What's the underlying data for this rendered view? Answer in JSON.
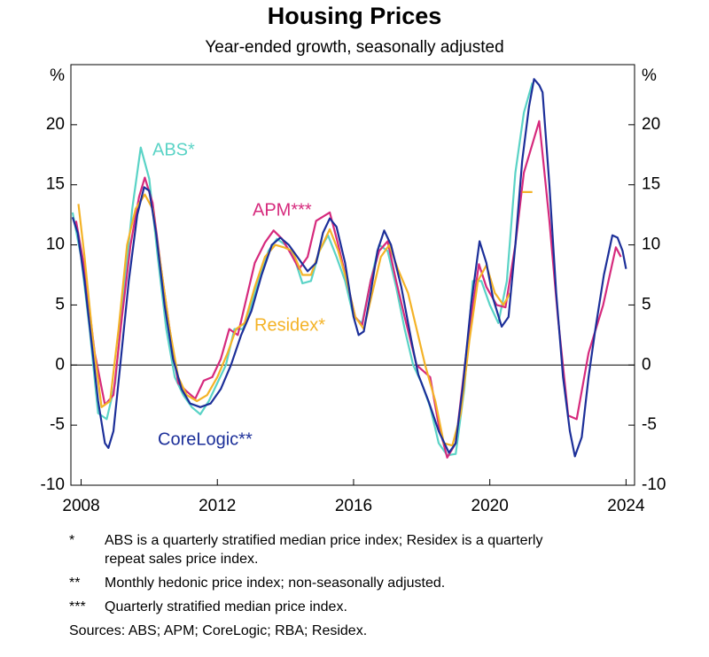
{
  "chart_data": {
    "type": "line",
    "title": "Housing Prices",
    "subtitle": "Year-ended growth, seasonally adjusted",
    "y_unit": "%",
    "y2_unit": "%",
    "xlim": [
      2007.7,
      2024.25
    ],
    "xticks": [
      2008,
      2012,
      2016,
      2020,
      2024
    ],
    "ylim": [
      -10,
      25
    ],
    "yticks": [
      -10,
      -5,
      0,
      5,
      10,
      15,
      20
    ],
    "y2lim": [
      -10,
      25
    ],
    "y2ticks": [
      -10,
      -5,
      0,
      5,
      10,
      15,
      20
    ],
    "zero_line": true,
    "series": [
      {
        "name": "ABS*",
        "color": "#5ad3c6",
        "x": [
          2007.75,
          2008.0,
          2008.25,
          2008.5,
          2008.75,
          2009.0,
          2009.25,
          2009.5,
          2009.75,
          2010.0,
          2010.25,
          2010.5,
          2010.75,
          2011.0,
          2011.25,
          2011.5,
          2011.75,
          2012.0,
          2012.25,
          2012.5,
          2012.75,
          2013.0,
          2013.25,
          2013.5,
          2013.75,
          2014.0,
          2014.25,
          2014.5,
          2014.75,
          2015.0,
          2015.25,
          2015.5,
          2015.75,
          2016.0,
          2016.25,
          2016.5,
          2016.75,
          2017.0,
          2017.25,
          2017.5,
          2017.75,
          2018.0,
          2018.25,
          2018.5,
          2018.75,
          2019.0,
          2019.25,
          2019.5,
          2019.75,
          2020.0,
          2020.25,
          2020.5,
          2020.75,
          2021.0,
          2021.25
        ],
        "values": [
          12.7,
          9,
          3,
          -4,
          -4.5,
          -1.5,
          6,
          13,
          18.1,
          15.5,
          9,
          3,
          -1,
          -2.5,
          -3.5,
          -4.1,
          -3,
          -1.5,
          0,
          3,
          3,
          5,
          7.5,
          9.5,
          10.5,
          10,
          9,
          6.8,
          7,
          9.5,
          10.8,
          9,
          7,
          4,
          3.5,
          7,
          10,
          9.5,
          6.5,
          3,
          0,
          -1.5,
          -3.5,
          -6.5,
          -7.5,
          -7.4,
          -2,
          7,
          7,
          5,
          3.5,
          7,
          16,
          21,
          23.5
        ]
      },
      {
        "name": "APM***",
        "color": "#d62a7d",
        "x": [
          2007.85,
          2008.1,
          2008.4,
          2008.7,
          2008.95,
          2009.2,
          2009.45,
          2009.7,
          2009.87,
          2010.1,
          2010.35,
          2010.6,
          2010.85,
          2011.1,
          2011.35,
          2011.6,
          2011.85,
          2012.1,
          2012.35,
          2012.6,
          2012.85,
          2013.1,
          2013.4,
          2013.65,
          2013.9,
          2014.15,
          2014.4,
          2014.65,
          2014.9,
          2015.3,
          2015.55,
          2015.8,
          2016.05,
          2016.25,
          2016.5,
          2016.75,
          2017.0,
          2017.25,
          2017.5,
          2017.85,
          2018.25,
          2018.5,
          2018.75,
          2019.0,
          2019.35,
          2019.68,
          2019.9,
          2020.2,
          2020.46,
          2020.75,
          2021.0,
          2021.45,
          2021.75,
          2022.0,
          2022.3,
          2022.55,
          2022.9,
          2023.33,
          2023.7,
          2023.85
        ],
        "values": [
          12,
          8,
          1,
          -3.3,
          -2.5,
          4,
          10,
          14,
          15.6,
          13.5,
          8,
          3,
          -1.5,
          -2.2,
          -2.8,
          -1.3,
          -1,
          0.5,
          3,
          2.5,
          5.5,
          8.5,
          10.2,
          11.2,
          10.5,
          9.3,
          8,
          9,
          12,
          12.7,
          10,
          7,
          4,
          3.3,
          7,
          9.5,
          10.3,
          7,
          4,
          0,
          -1,
          -5,
          -7.7,
          -6.5,
          2,
          8.4,
          6.5,
          5,
          4.8,
          10,
          16,
          20.3,
          12,
          4,
          -4.2,
          -4.5,
          1,
          5,
          9.8,
          9
        ]
      },
      {
        "name": "Residex*",
        "color": "#f4b327",
        "x": [
          2007.92,
          2008.1,
          2008.35,
          2008.6,
          2008.85,
          2009.1,
          2009.35,
          2009.6,
          2009.87,
          2010.1,
          2010.35,
          2010.6,
          2010.85,
          2011.1,
          2011.4,
          2011.7,
          2012.0,
          2012.3,
          2012.55,
          2012.8,
          2013.1,
          2013.4,
          2013.7,
          2013.95,
          2014.2,
          2014.5,
          2014.75,
          2015.0,
          2015.3,
          2015.55,
          2015.8,
          2016.05,
          2016.3,
          2016.55,
          2016.8,
          2017.05,
          2017.3,
          2017.6,
          2017.85,
          2018.1,
          2018.4,
          2018.65,
          2018.9,
          2019.15,
          2019.4,
          2019.65,
          2019.9,
          2020.15,
          2020.4,
          2020.6,
          2020.8,
          2020.95,
          2021.15,
          2021.25
        ],
        "values": [
          13.4,
          9,
          2,
          -3.5,
          -3,
          3,
          10,
          13,
          14.2,
          13,
          8,
          3,
          -1,
          -2.5,
          -3,
          -2.5,
          -1,
          1,
          3,
          3.5,
          6.5,
          9,
          10,
          9.8,
          9.5,
          7.5,
          7.5,
          9.5,
          11.3,
          9.5,
          7,
          4,
          3,
          6,
          9,
          10,
          8,
          6,
          3,
          0,
          -3,
          -6.5,
          -6.7,
          -4,
          2,
          7,
          8.3,
          6,
          5,
          6,
          null,
          14.4,
          14.4,
          14.4
        ]
      },
      {
        "name": "CoreLogic**",
        "color": "#1c2f99",
        "x": [
          2007.75,
          2007.9,
          2008.1,
          2008.3,
          2008.5,
          2008.7,
          2008.8,
          2008.95,
          2009.15,
          2009.4,
          2009.65,
          2009.85,
          2010.0,
          2010.2,
          2010.45,
          2010.7,
          2010.95,
          2011.2,
          2011.5,
          2011.8,
          2012.1,
          2012.4,
          2012.7,
          2013.0,
          2013.3,
          2013.6,
          2013.85,
          2014.1,
          2014.4,
          2014.65,
          2014.9,
          2015.1,
          2015.3,
          2015.5,
          2015.75,
          2016.0,
          2016.15,
          2016.3,
          2016.5,
          2016.7,
          2016.9,
          2017.1,
          2017.4,
          2017.7,
          2017.9,
          2018.2,
          2018.5,
          2018.8,
          2019.0,
          2019.2,
          2019.45,
          2019.7,
          2019.9,
          2020.1,
          2020.35,
          2020.55,
          2020.75,
          2020.95,
          2021.15,
          2021.3,
          2021.45,
          2021.55,
          2021.75,
          2021.95,
          2022.15,
          2022.35,
          2022.5,
          2022.7,
          2022.9,
          2023.1,
          2023.35,
          2023.6,
          2023.75,
          2023.9,
          2024.0
        ],
        "values": [
          12.3,
          11,
          7,
          2,
          -3,
          -6.5,
          -6.9,
          -5.5,
          0,
          7,
          12.5,
          14.8,
          14.5,
          11,
          5,
          0.5,
          -2,
          -3.2,
          -3.5,
          -3.2,
          -2,
          0,
          2.5,
          4.5,
          7.5,
          10,
          10.6,
          10,
          8.8,
          7.8,
          8.5,
          11,
          12.2,
          11.5,
          8.5,
          4,
          2.5,
          2.8,
          6,
          9.5,
          11.2,
          10,
          6.5,
          2,
          -0.8,
          -3,
          -5.5,
          -7.3,
          -6.5,
          -2,
          5,
          10.3,
          8.5,
          5.5,
          3.2,
          4,
          10,
          17,
          21.5,
          23.8,
          23.3,
          22.7,
          15,
          6,
          -1,
          -5.5,
          -7.6,
          -6,
          -1,
          3,
          7.5,
          10.8,
          10.6,
          9.5,
          8
        ]
      }
    ],
    "footnotes": [
      {
        "marker": "*",
        "text": [
          "ABS is a quarterly stratified median price index; Residex is a quarterly",
          "repeat sales price index."
        ]
      },
      {
        "marker": "**",
        "text": [
          "Monthly hedonic price index; non-seasonally adjusted."
        ]
      },
      {
        "marker": "***",
        "text": [
          "Quarterly stratified median price index."
        ]
      }
    ],
    "sources": "Sources: ABS; APM; CoreLogic; RBA; Residex."
  }
}
